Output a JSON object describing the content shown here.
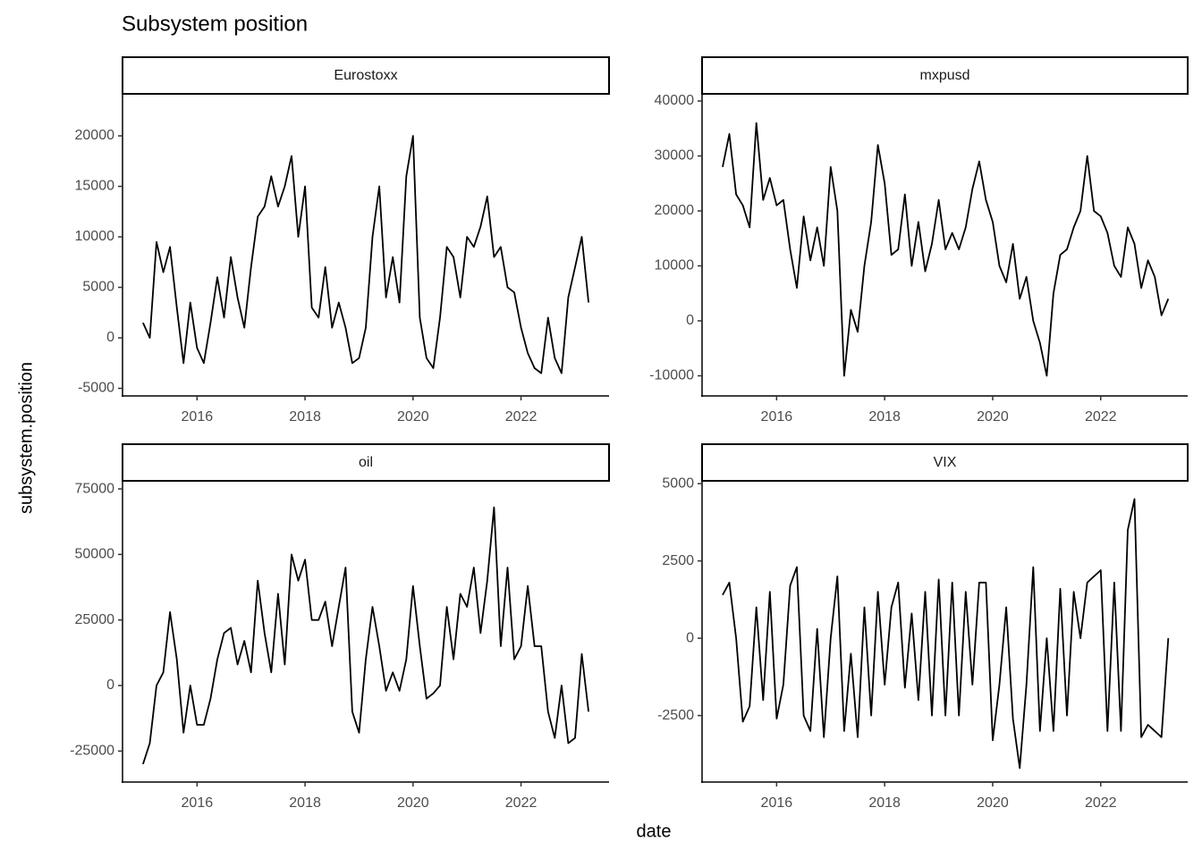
{
  "title": "Subsystem position",
  "xlabel": "date",
  "ylabel": "subsystem.position",
  "chart_data": [
    {
      "type": "line",
      "title": "Eurostoxx",
      "color": "#000000",
      "x": [
        2015,
        2015.125,
        2015.25,
        2015.375,
        2015.5,
        2015.625,
        2015.75,
        2015.875,
        2016,
        2016.125,
        2016.25,
        2016.375,
        2016.5,
        2016.625,
        2016.75,
        2016.875,
        2017,
        2017.125,
        2017.25,
        2017.375,
        2017.5,
        2017.625,
        2017.75,
        2017.875,
        2018,
        2018.125,
        2018.25,
        2018.375,
        2018.5,
        2018.625,
        2018.75,
        2018.875,
        2019,
        2019.125,
        2019.25,
        2019.375,
        2019.5,
        2019.625,
        2019.75,
        2019.875,
        2020,
        2020.125,
        2020.25,
        2020.375,
        2020.5,
        2020.625,
        2020.75,
        2020.875,
        2021,
        2021.125,
        2021.25,
        2021.375,
        2021.5,
        2021.625,
        2021.75,
        2021.875,
        2022,
        2022.125,
        2022.25,
        2022.375,
        2022.5,
        2022.625,
        2022.75,
        2022.875,
        2023,
        2023.125,
        2023.25
      ],
      "values": [
        1500,
        0,
        9500,
        6500,
        9000,
        3000,
        -2500,
        3500,
        -1000,
        -2500,
        1500,
        6000,
        2000,
        8000,
        4000,
        1000,
        7000,
        12000,
        13000,
        16000,
        13000,
        15000,
        18000,
        10000,
        15000,
        3000,
        2000,
        7000,
        1000,
        3500,
        1000,
        -2500,
        -2000,
        1000,
        10000,
        15000,
        4000,
        8000,
        3500,
        16000,
        20000,
        2000,
        -2000,
        -3000,
        2000,
        9000,
        8000,
        4000,
        10000,
        9000,
        11000,
        14000,
        8000,
        9000,
        5000,
        4500,
        1000,
        -1500,
        -3000,
        -3500,
        2000,
        -2000,
        -3500,
        4000,
        7000,
        10000,
        3500
      ],
      "xlim": [
        2014.62,
        2023.63
      ],
      "ylim": [
        -5750,
        24160
      ],
      "xticks": [
        2016,
        2018,
        2020,
        2022
      ],
      "yticks": [
        -5000,
        0,
        5000,
        10000,
        15000,
        20000
      ]
    },
    {
      "type": "line",
      "title": "mxpusd",
      "color": "#000000",
      "x": [
        2015,
        2015.125,
        2015.25,
        2015.375,
        2015.5,
        2015.625,
        2015.75,
        2015.875,
        2016,
        2016.125,
        2016.25,
        2016.375,
        2016.5,
        2016.625,
        2016.75,
        2016.875,
        2017,
        2017.125,
        2017.25,
        2017.375,
        2017.5,
        2017.625,
        2017.75,
        2017.875,
        2018,
        2018.125,
        2018.25,
        2018.375,
        2018.5,
        2018.625,
        2018.75,
        2018.875,
        2019,
        2019.125,
        2019.25,
        2019.375,
        2019.5,
        2019.625,
        2019.75,
        2019.875,
        2020,
        2020.125,
        2020.25,
        2020.375,
        2020.5,
        2020.625,
        2020.75,
        2020.875,
        2021,
        2021.125,
        2021.25,
        2021.375,
        2021.5,
        2021.625,
        2021.75,
        2021.875,
        2022,
        2022.125,
        2022.25,
        2022.375,
        2022.5,
        2022.625,
        2022.75,
        2022.875,
        2023,
        2023.125,
        2023.25
      ],
      "values": [
        28000,
        34000,
        23000,
        21000,
        17000,
        36000,
        22000,
        26000,
        21000,
        22000,
        13000,
        6000,
        19000,
        11000,
        17000,
        10000,
        28000,
        20000,
        -10000,
        2000,
        -2000,
        10000,
        18000,
        32000,
        25000,
        12000,
        13000,
        23000,
        10000,
        18000,
        9000,
        14000,
        22000,
        13000,
        16000,
        13000,
        17000,
        24000,
        29000,
        22000,
        18000,
        10000,
        7000,
        14000,
        4000,
        8000,
        0,
        -4000,
        -10000,
        5000,
        12000,
        13000,
        17000,
        20000,
        30000,
        20000,
        19000,
        16000,
        10000,
        8000,
        17000,
        14000,
        6000,
        11000,
        8000,
        1000,
        4000
      ],
      "xlim": [
        2014.62,
        2023.61
      ],
      "ylim": [
        -13660,
        41300
      ],
      "xticks": [
        2016,
        2018,
        2020,
        2022
      ],
      "yticks": [
        -10000,
        0,
        10000,
        20000,
        30000,
        40000
      ]
    },
    {
      "type": "line",
      "title": "oil",
      "color": "#000000",
      "x": [
        2015,
        2015.125,
        2015.25,
        2015.375,
        2015.5,
        2015.625,
        2015.75,
        2015.875,
        2016,
        2016.125,
        2016.25,
        2016.375,
        2016.5,
        2016.625,
        2016.75,
        2016.875,
        2017,
        2017.125,
        2017.25,
        2017.375,
        2017.5,
        2017.625,
        2017.75,
        2017.875,
        2018,
        2018.125,
        2018.25,
        2018.375,
        2018.5,
        2018.625,
        2018.75,
        2018.875,
        2019,
        2019.125,
        2019.25,
        2019.375,
        2019.5,
        2019.625,
        2019.75,
        2019.875,
        2020,
        2020.125,
        2020.25,
        2020.375,
        2020.5,
        2020.625,
        2020.75,
        2020.875,
        2021,
        2021.125,
        2021.25,
        2021.375,
        2021.5,
        2021.625,
        2021.75,
        2021.875,
        2022,
        2022.125,
        2022.25,
        2022.375,
        2022.5,
        2022.625,
        2022.75,
        2022.875,
        2023,
        2023.125,
        2023.25
      ],
      "values": [
        -30000,
        -22000,
        0,
        5000,
        28000,
        10000,
        -18000,
        0,
        -15000,
        -15000,
        -5000,
        10000,
        20000,
        22000,
        8000,
        17000,
        5000,
        40000,
        20000,
        5000,
        35000,
        8000,
        50000,
        40000,
        48000,
        25000,
        25000,
        32000,
        15000,
        30000,
        45000,
        -10000,
        -18000,
        10000,
        30000,
        15000,
        -2000,
        5000,
        -2000,
        10000,
        38000,
        15000,
        -5000,
        -3000,
        0,
        30000,
        10000,
        35000,
        30000,
        45000,
        20000,
        40000,
        68000,
        15000,
        45000,
        10000,
        15000,
        38000,
        15000,
        15000,
        -10000,
        -20000,
        0,
        -22000,
        -20000,
        12000,
        -10000
      ],
      "xlim": [
        2014.62,
        2023.63
      ],
      "ylim": [
        -36820,
        78080
      ],
      "xticks": [
        2016,
        2018,
        2020,
        2022
      ],
      "yticks": [
        -25000,
        0,
        25000,
        50000,
        75000
      ]
    },
    {
      "type": "line",
      "title": "VIX",
      "color": "#000000",
      "x": [
        2015,
        2015.125,
        2015.25,
        2015.375,
        2015.5,
        2015.625,
        2015.75,
        2015.875,
        2016,
        2016.125,
        2016.25,
        2016.375,
        2016.5,
        2016.625,
        2016.75,
        2016.875,
        2017,
        2017.125,
        2017.25,
        2017.375,
        2017.5,
        2017.625,
        2017.75,
        2017.875,
        2018,
        2018.125,
        2018.25,
        2018.375,
        2018.5,
        2018.625,
        2018.75,
        2018.875,
        2019,
        2019.125,
        2019.25,
        2019.375,
        2019.5,
        2019.625,
        2019.75,
        2019.875,
        2020,
        2020.125,
        2020.25,
        2020.375,
        2020.5,
        2020.625,
        2020.75,
        2020.875,
        2021,
        2021.125,
        2021.25,
        2021.375,
        2021.5,
        2021.625,
        2021.75,
        2021.875,
        2022,
        2022.125,
        2022.25,
        2022.375,
        2022.5,
        2022.625,
        2022.75,
        2022.875,
        2023,
        2023.125,
        2023.25
      ],
      "values": [
        1400,
        1800,
        0,
        -2700,
        -2200,
        1000,
        -2000,
        1500,
        -2600,
        -1500,
        1700,
        2300,
        -2500,
        -3000,
        300,
        -3200,
        0,
        2000,
        -3000,
        -500,
        -3200,
        1000,
        -2500,
        1500,
        -1500,
        1000,
        1800,
        -1600,
        800,
        -2000,
        1500,
        -2500,
        1900,
        -2500,
        1800,
        -2500,
        1500,
        -1500,
        1800,
        1800,
        -3300,
        -1500,
        1000,
        -2600,
        -4200,
        -1500,
        2300,
        -3000,
        0,
        -3000,
        1600,
        -2500,
        1500,
        0,
        1800,
        2000,
        2200,
        -3000,
        1800,
        -3000,
        3500,
        4500,
        -3200,
        -2800,
        -3000,
        -3200,
        0
      ],
      "xlim": [
        2014.62,
        2023.61
      ],
      "ylim": [
        -4650,
        5090
      ],
      "xticks": [
        2016,
        2018,
        2020,
        2022
      ],
      "yticks": [
        -2500,
        0,
        2500,
        5000
      ]
    }
  ]
}
